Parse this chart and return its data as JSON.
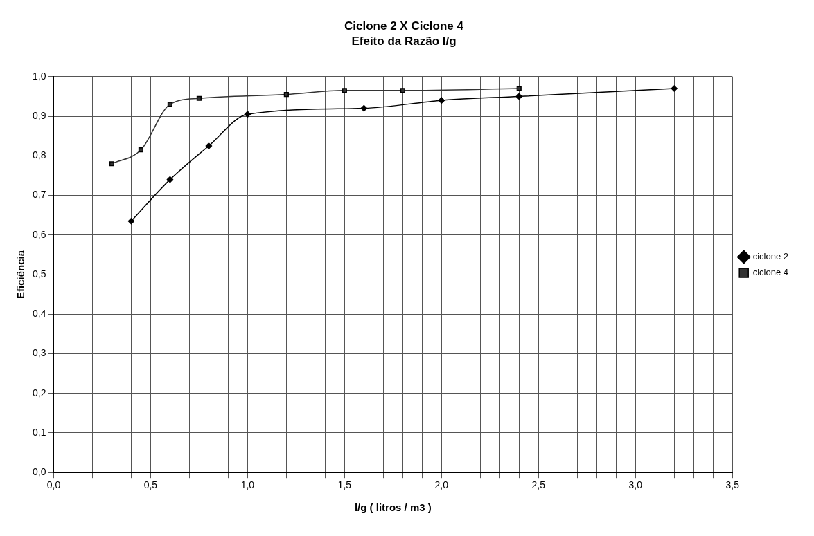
{
  "chart_data": {
    "type": "line",
    "title": "Ciclone 2 X Ciclone 4",
    "subtitle": "Efeito da Razão l/g",
    "xlabel": "l/g ( litros / m3 )",
    "ylabel": "Eficiência",
    "series": [
      {
        "name": "ciclone 2",
        "color": "#000000",
        "marker": "diamond",
        "x": [
          0.4,
          0.6,
          0.8,
          1.0,
          1.6,
          2.0,
          2.4,
          3.2
        ],
        "values": [
          0.635,
          0.74,
          0.825,
          0.905,
          0.92,
          0.94,
          0.95,
          0.97
        ]
      },
      {
        "name": "ciclone 4",
        "color": "#333333",
        "marker": "square",
        "x": [
          0.3,
          0.45,
          0.6,
          0.75,
          1.2,
          1.5,
          1.8,
          2.4
        ],
        "values": [
          0.78,
          0.815,
          0.93,
          0.945,
          0.955,
          0.965,
          0.965,
          0.97
        ]
      }
    ],
    "xlim": [
      0,
      3.5
    ],
    "xticks": [
      {
        "value": 0,
        "label": "0,0"
      },
      {
        "value": 0.1,
        "label": null
      },
      {
        "value": 0.2,
        "label": null
      },
      {
        "value": 0.3,
        "label": null
      },
      {
        "value": 0.4,
        "label": null
      },
      {
        "value": 0.5,
        "label": "0,5"
      },
      {
        "value": 0.6,
        "label": null
      },
      {
        "value": 0.7,
        "label": null
      },
      {
        "value": 0.8,
        "label": null
      },
      {
        "value": 0.9,
        "label": null
      },
      {
        "value": 1,
        "label": "1,0"
      },
      {
        "value": 1.1,
        "label": null
      },
      {
        "value": 1.2,
        "label": null
      },
      {
        "value": 1.3,
        "label": null
      },
      {
        "value": 1.4,
        "label": null
      },
      {
        "value": 1.5,
        "label": "1,5"
      },
      {
        "value": 1.6,
        "label": null
      },
      {
        "value": 1.7,
        "label": null
      },
      {
        "value": 1.8,
        "label": null
      },
      {
        "value": 1.9,
        "label": null
      },
      {
        "value": 2,
        "label": "2,0"
      },
      {
        "value": 2.1,
        "label": null
      },
      {
        "value": 2.2,
        "label": null
      },
      {
        "value": 2.3,
        "label": null
      },
      {
        "value": 2.4,
        "label": null
      },
      {
        "value": 2.5,
        "label": "2,5"
      },
      {
        "value": 2.6,
        "label": null
      },
      {
        "value": 2.7,
        "label": null
      },
      {
        "value": 2.8,
        "label": null
      },
      {
        "value": 2.9,
        "label": null
      },
      {
        "value": 3,
        "label": "3,0"
      },
      {
        "value": 3.1,
        "label": null
      },
      {
        "value": 3.2,
        "label": null
      },
      {
        "value": 3.3,
        "label": null
      },
      {
        "value": 3.4,
        "label": null
      },
      {
        "value": 3.5,
        "label": "3,5"
      }
    ],
    "ylim": [
      0,
      1
    ],
    "yticks": [
      {
        "value": 0,
        "label": "0,0"
      },
      {
        "value": 0.1,
        "label": "0,1"
      },
      {
        "value": 0.2,
        "label": "0,2"
      },
      {
        "value": 0.3,
        "label": "0,3"
      },
      {
        "value": 0.4,
        "label": "0,4"
      },
      {
        "value": 0.5,
        "label": "0,5"
      },
      {
        "value": 0.6,
        "label": "0,6"
      },
      {
        "value": 0.7,
        "label": "0,7"
      },
      {
        "value": 0.8,
        "label": "0,8"
      },
      {
        "value": 0.9,
        "label": "0,9"
      },
      {
        "value": 1,
        "label": "1,0"
      }
    ],
    "grid": true,
    "legend": "right",
    "line_style": "solid"
  }
}
